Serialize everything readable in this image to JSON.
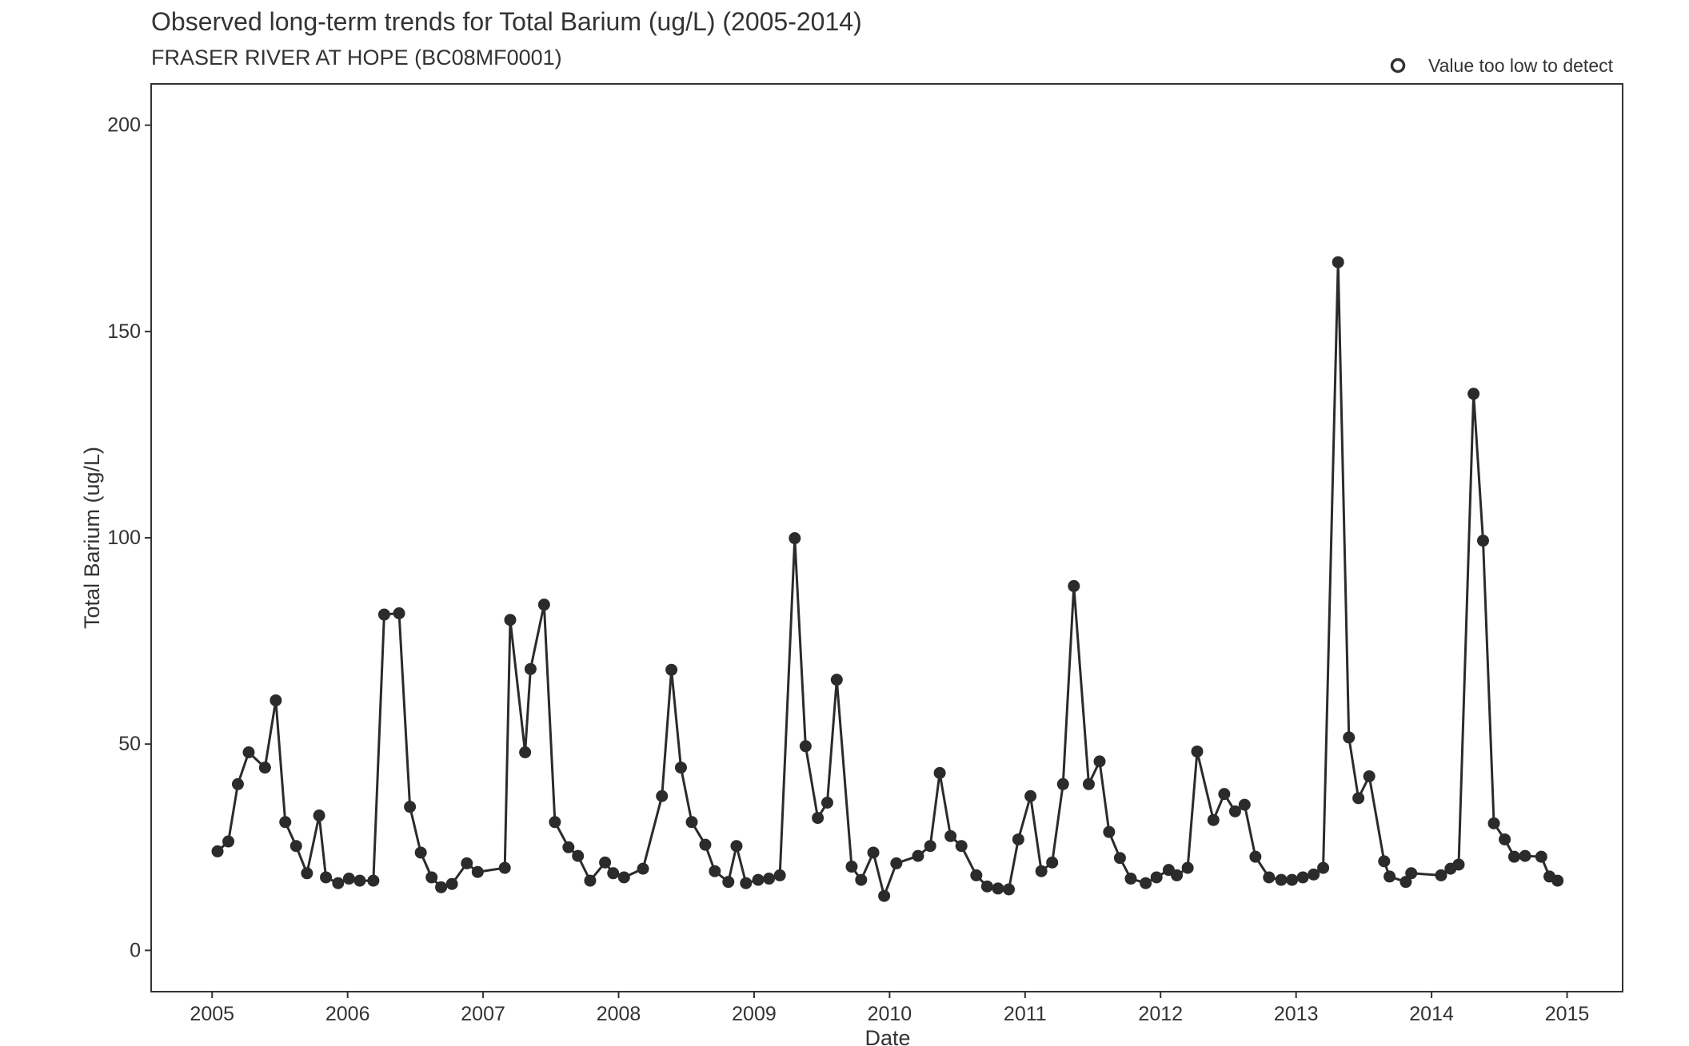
{
  "chart_data": {
    "type": "line",
    "title": "Observed long-term trends for Total Barium (ug/L) (2005-2014)",
    "subtitle": "FRASER RIVER AT HOPE (BC08MF0001)",
    "x_label": "Date",
    "y_label": "Total Barium (ug/L)",
    "legend": {
      "label": "Value too low to detect",
      "position": "top-right"
    },
    "color": "#2b2b2b",
    "x": [
      2005.04,
      2005.12,
      2005.19,
      2005.27,
      2005.39,
      2005.47,
      2005.54,
      2005.62,
      2005.7,
      2005.79,
      2005.84,
      2005.93,
      2006.01,
      2006.09,
      2006.19,
      2006.27,
      2006.38,
      2006.46,
      2006.54,
      2006.62,
      2006.69,
      2006.77,
      2006.88,
      2006.96,
      2007.16,
      2007.2,
      2007.31,
      2007.35,
      2007.45,
      2007.53,
      2007.63,
      2007.7,
      2007.79,
      2007.9,
      2007.96,
      2008.04,
      2008.18,
      2008.32,
      2008.39,
      2008.46,
      2008.54,
      2008.64,
      2008.71,
      2008.81,
      2008.87,
      2008.94,
      2009.03,
      2009.11,
      2009.19,
      2009.3,
      2009.38,
      2009.47,
      2009.54,
      2009.61,
      2009.72,
      2009.79,
      2009.88,
      2009.96,
      2010.05,
      2010.21,
      2010.3,
      2010.37,
      2010.45,
      2010.53,
      2010.64,
      2010.72,
      2010.8,
      2010.88,
      2010.95,
      2011.04,
      2011.12,
      2011.2,
      2011.28,
      2011.36,
      2011.47,
      2011.55,
      2011.62,
      2011.7,
      2011.78,
      2011.89,
      2011.97,
      2012.06,
      2012.12,
      2012.2,
      2012.27,
      2012.39,
      2012.47,
      2012.55,
      2012.62,
      2012.7,
      2012.8,
      2012.89,
      2012.97,
      2013.05,
      2013.13,
      2013.2,
      2013.31,
      2013.39,
      2013.46,
      2013.54,
      2013.65,
      2013.69,
      2013.81,
      2013.85,
      2014.07,
      2014.14,
      2014.2,
      2014.31,
      2014.38,
      2014.46,
      2014.54,
      2014.61,
      2014.69,
      2014.81,
      2014.87,
      2014.93
    ],
    "values": [
      24,
      26.4,
      40.3,
      48,
      44.3,
      60.6,
      31.1,
      25.3,
      18.7,
      32.7,
      17.7,
      16.3,
      17.4,
      16.9,
      16.9,
      81.4,
      81.7,
      34.8,
      23.7,
      17.7,
      15.3,
      16.1,
      21.1,
      19,
      20,
      80.1,
      48,
      68.2,
      83.8,
      31.1,
      25,
      22.9,
      16.9,
      21.3,
      18.7,
      17.7,
      19.8,
      37.4,
      68,
      44.3,
      31.1,
      25.6,
      19.2,
      16.6,
      25.3,
      16.3,
      17.1,
      17.4,
      18.2,
      99.9,
      49.5,
      32.1,
      35.8,
      65.6,
      20.3,
      17.1,
      23.7,
      13.2,
      21.1,
      22.9,
      25.3,
      43,
      27.7,
      25.3,
      18.2,
      15.5,
      15,
      14.8,
      26.9,
      37.4,
      19.2,
      21.3,
      40.3,
      88.3,
      40.3,
      45.8,
      28.7,
      22.4,
      17.4,
      16.3,
      17.7,
      19.5,
      18.2,
      20,
      48.2,
      31.6,
      37.9,
      33.7,
      35.3,
      22.7,
      17.7,
      17.1,
      17.1,
      17.7,
      18.4,
      20,
      166.8,
      51.6,
      36.9,
      42.2,
      21.6,
      17.9,
      16.6,
      18.7,
      18.2,
      19.8,
      20.8,
      134.9,
      99.3,
      30.8,
      26.9,
      22.7,
      22.9,
      22.7,
      17.9,
      16.9
    ],
    "xlim": [
      2004.55,
      2015.41
    ],
    "xticks": [
      2005,
      2006,
      2007,
      2008,
      2009,
      2010,
      2011,
      2012,
      2013,
      2014,
      2015
    ],
    "ylim": [
      -10,
      210
    ],
    "yticks": [
      0,
      50,
      100,
      150,
      200
    ],
    "grid": false
  }
}
